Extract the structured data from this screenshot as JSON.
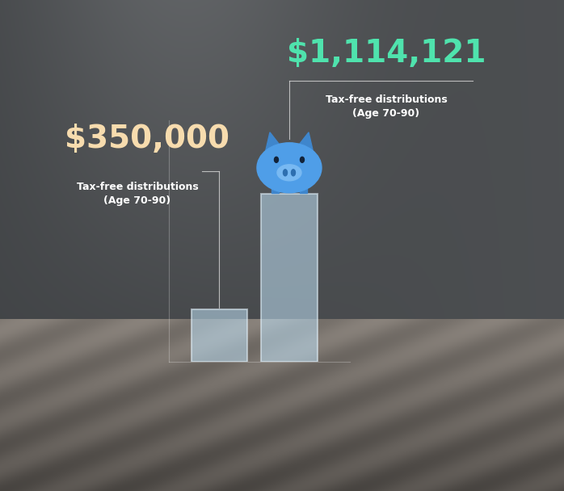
{
  "chart_data": {
    "type": "bar",
    "categories": [
      null,
      null
    ],
    "values": [
      350000,
      1114121
    ],
    "value_labels": [
      "$350,000",
      "$1,114,121"
    ],
    "annotations": [
      "Tax-free distributions\n(Age 70-90)",
      "Tax-free distributions\n(Age 70-90)"
    ],
    "color": "#bfe0f5",
    "ylim": [
      0,
      1600000
    ],
    "data_labels": true,
    "tick_labels": false
  }
}
